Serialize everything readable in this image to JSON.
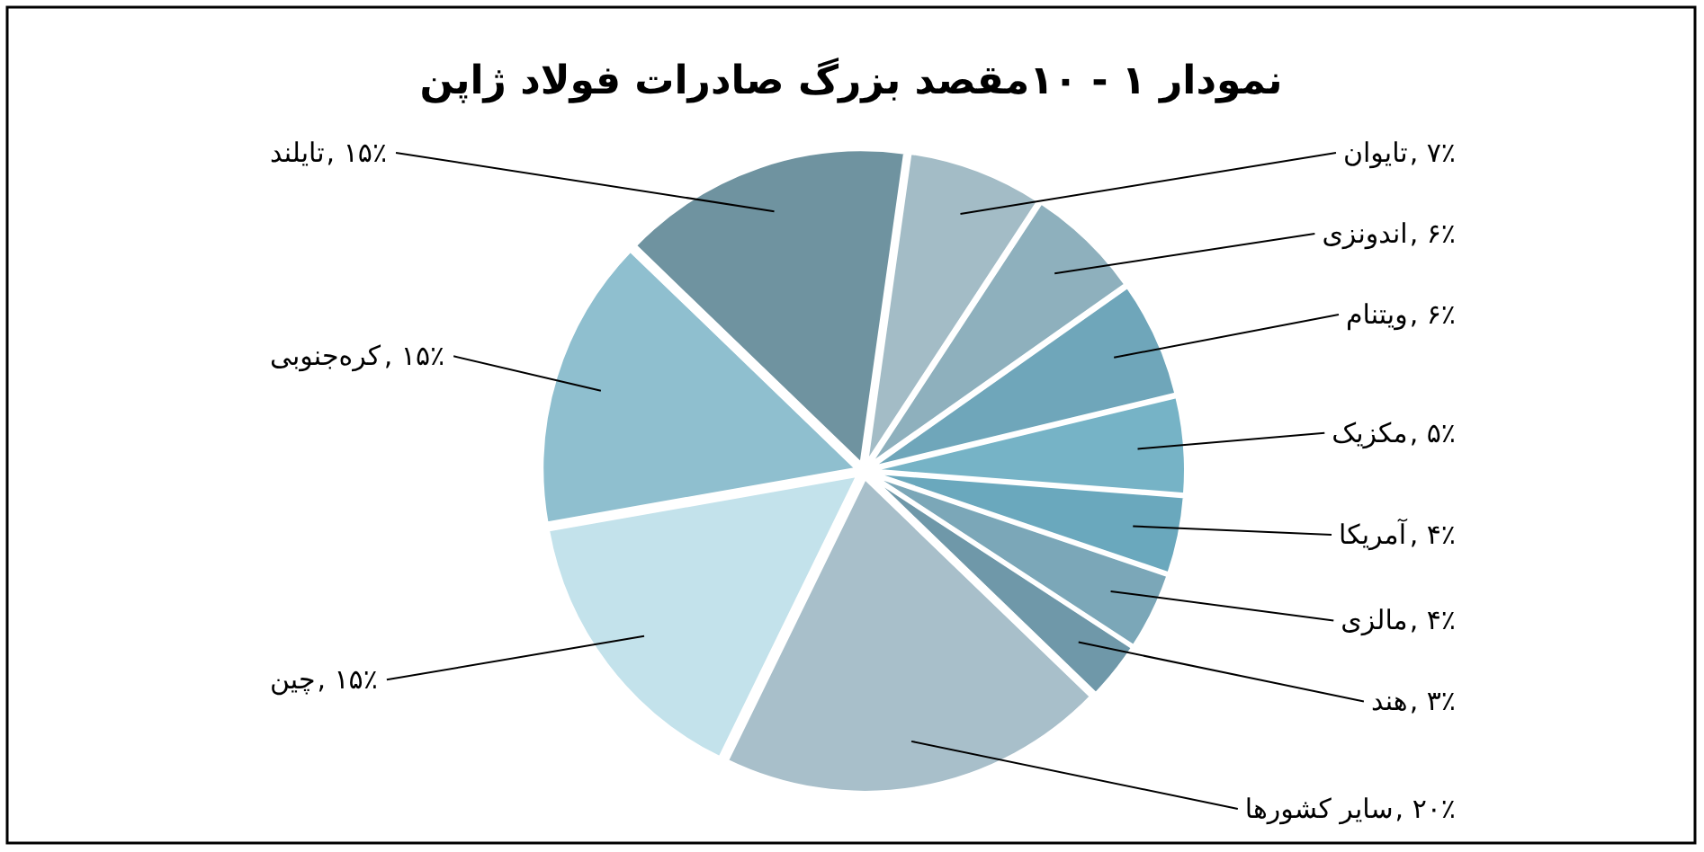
{
  "chart_data": {
    "type": "pie",
    "title": "نمودار ۱ - ۱۰مقصد بزرگ صادرات فولاد ژاپن",
    "categories": [
      "تایوان",
      "اندونزی",
      "ویتنام",
      "مکزیک",
      "آمریکا",
      "مالزی",
      "هند",
      "سایر کشورها",
      "چین",
      "کره‌جنوبی",
      "تایلند"
    ],
    "values": [
      7,
      6,
      6,
      5,
      4,
      4,
      3,
      20,
      15,
      15,
      15
    ],
    "value_labels": [
      ", ۷٪",
      ", ۶٪",
      ", ۶٪",
      ", ۵٪",
      ", ۴٪",
      ", ۴٪",
      ", ۳٪",
      ", ۲۰٪",
      ", ۱۵٪",
      ", ۱۵٪",
      ", ۱۵٪"
    ],
    "colors": [
      "#a3bcc6",
      "#8eb0bd",
      "#6fa6ba",
      "#76b3c6",
      "#6aa8bd",
      "#7ba7b8",
      "#6f98a9",
      "#a8bfca",
      "#c3e2eb",
      "#8fbfcf",
      "#6f93a0"
    ]
  }
}
